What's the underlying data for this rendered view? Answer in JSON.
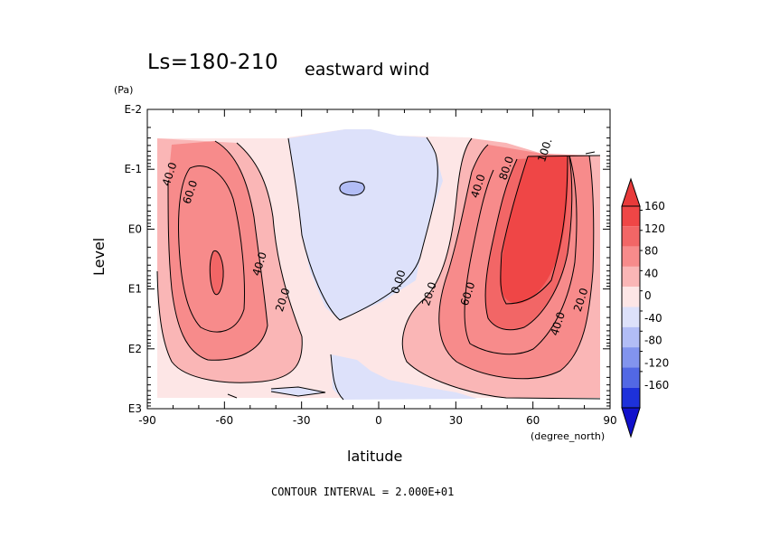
{
  "header": {
    "title": "Ls=180-210",
    "subtitle": "eastward wind",
    "y_unit": "(Pa)",
    "x_unit": "(degree_north)"
  },
  "footer": {
    "contour_interval": "CONTOUR INTERVAL = 2.000E+01"
  },
  "chart_data": {
    "type": "contour",
    "title": "Ls=180-210",
    "subtitle": "eastward wind",
    "xlabel": "latitude",
    "ylabel": "Level",
    "x_unit": "(degree_north)",
    "y_unit": "(Pa)",
    "xlim": [
      -90,
      90
    ],
    "ylim_log10_pa": [
      -2,
      3
    ],
    "y_scale": "log, decreasing upward",
    "x_ticks": [
      "-90",
      "-60",
      "-30",
      "0",
      "30",
      "60",
      "90"
    ],
    "x_tick_values": [
      -90,
      -60,
      -30,
      0,
      30,
      60,
      90
    ],
    "y_ticks": [
      "E-2",
      "E-1",
      "E0",
      "E1",
      "E2",
      "E3"
    ],
    "y_tick_values": [
      -2,
      -1,
      0,
      1,
      2,
      3
    ],
    "contour_interval": 20,
    "contour_labels": [
      {
        "text": "40.0",
        "lat": -80,
        "logp": -0.9
      },
      {
        "text": "60.0",
        "lat": -72,
        "logp": -0.6
      },
      {
        "text": "40.0",
        "lat": -45,
        "logp": 0.6
      },
      {
        "text": "20.0",
        "lat": -36,
        "logp": 1.2
      },
      {
        "text": "0.00",
        "lat": 9,
        "logp": 0.9
      },
      {
        "text": "20.0",
        "lat": 21,
        "logp": 1.1
      },
      {
        "text": "40.0",
        "lat": 40,
        "logp": -0.7
      },
      {
        "text": "60.0",
        "lat": 36,
        "logp": 1.1
      },
      {
        "text": "80.0",
        "lat": 51,
        "logp": -1.0
      },
      {
        "text": "100.",
        "lat": 66,
        "logp": -1.3
      },
      {
        "text": "40.0",
        "lat": 71,
        "logp": 1.6
      },
      {
        "text": "20.0",
        "lat": 80,
        "logp": 1.2
      }
    ],
    "features": [
      {
        "kind": "eastward jet",
        "lat_center": -65,
        "logp_center": 0.7,
        "max_level": 80
      },
      {
        "kind": "eastward jet",
        "lat_center": 60,
        "logp_center": 0.3,
        "max_level": 120
      },
      {
        "kind": "westward region",
        "lat_range": [
          -35,
          25
        ],
        "logp_range": [
          -1.5,
          1.5
        ],
        "value": "0 to -40"
      },
      {
        "kind": "westward closed low",
        "lat_center": -11,
        "logp_center": -0.68,
        "value": -20
      },
      {
        "kind": "westward region",
        "lat_range": [
          -30,
          50
        ],
        "logp_range": [
          2.1,
          2.95
        ],
        "value": "0 to -40"
      }
    ],
    "colorbar": {
      "labels": [
        "160",
        "120",
        "80",
        "40",
        "0",
        "-40",
        "-80",
        "-120",
        "-160"
      ],
      "levels": [
        160,
        120,
        80,
        40,
        0,
        -40,
        -80,
        -120,
        -160
      ],
      "colors_top_to_bottom": [
        "#ef4646",
        "#f26666",
        "#f78b8b",
        "#fab6b6",
        "#fde6e6",
        "#dde1fa",
        "#b2bdf6",
        "#8294ee",
        "#5268e4",
        "#1d31da"
      ],
      "top_arrow_color": "#e83a3a",
      "bottom_arrow_color": "#1111cc",
      "position": "right"
    },
    "grid": false
  }
}
